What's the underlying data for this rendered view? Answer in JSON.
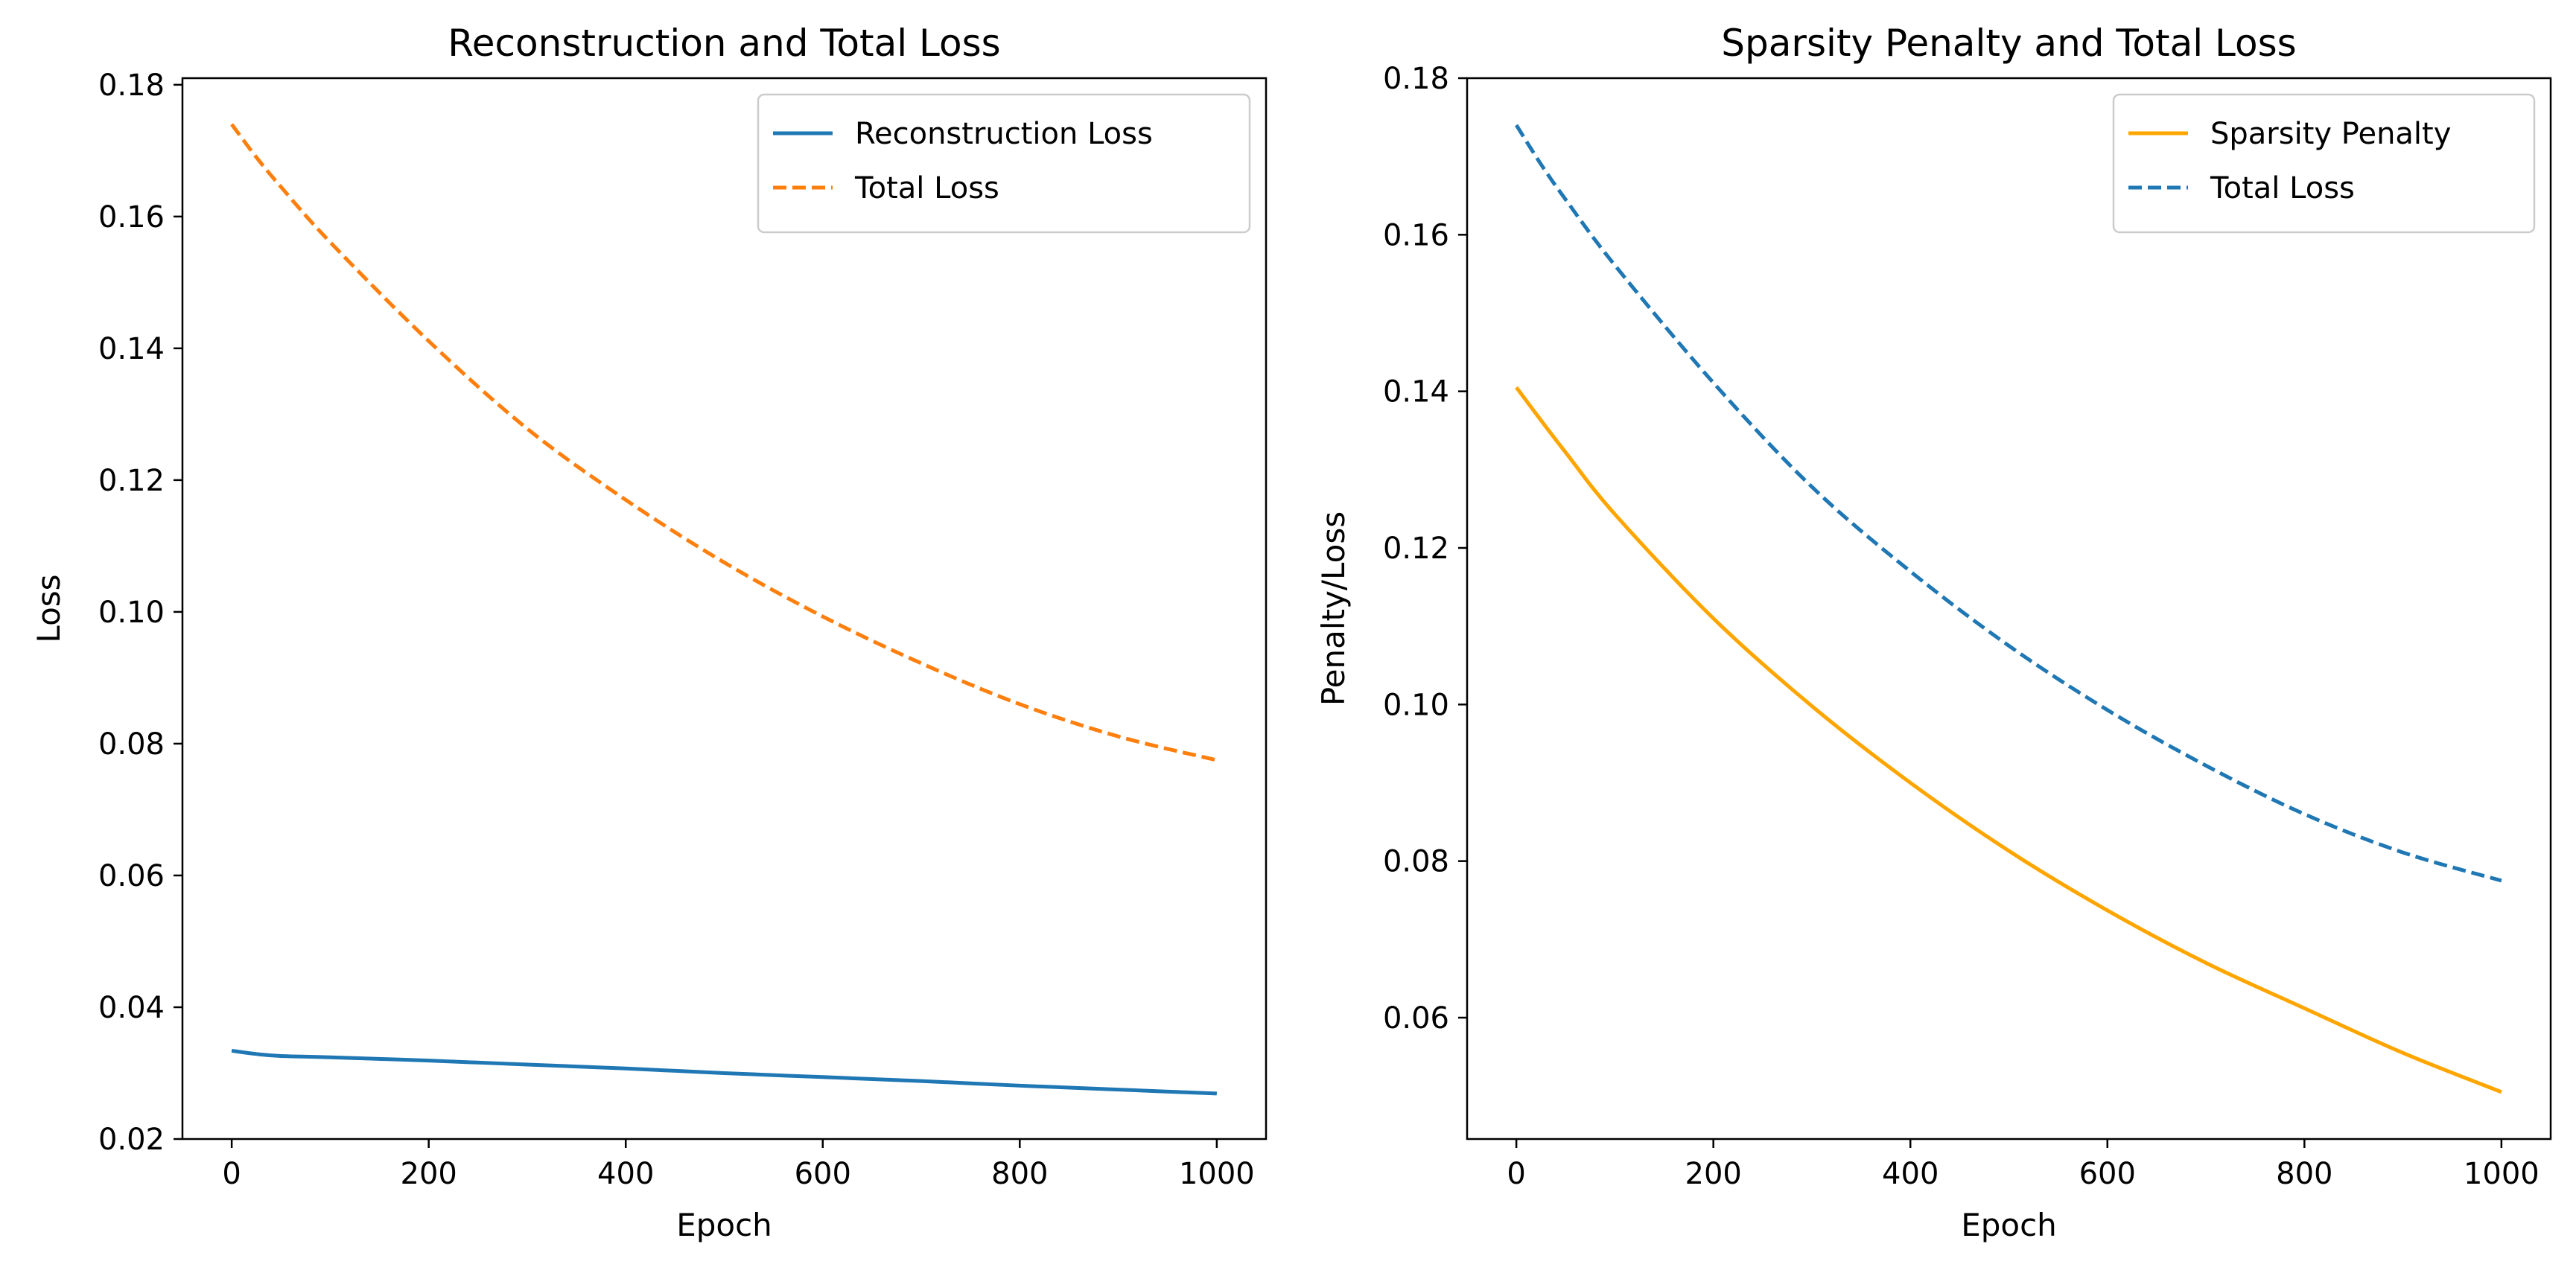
{
  "chart_data": [
    {
      "type": "line",
      "title": "Reconstruction and Total Loss",
      "xlabel": "Epoch",
      "ylabel": "Loss",
      "xlim": [
        -50,
        1050
      ],
      "ylim": [
        0.02,
        0.181
      ],
      "x_ticks": [
        0,
        200,
        400,
        600,
        800,
        1000
      ],
      "x_tick_labels": [
        "0",
        "200",
        "400",
        "600",
        "800",
        "1000"
      ],
      "y_ticks": [
        0.02,
        0.04,
        0.06,
        0.08,
        0.1,
        0.12,
        0.14,
        0.16,
        0.18
      ],
      "y_tick_labels": [
        "0.02",
        "0.04",
        "0.06",
        "0.08",
        "0.10",
        "0.12",
        "0.14",
        "0.16",
        "0.18"
      ],
      "grid": false,
      "legend_position": "top-right",
      "x": [
        0,
        25,
        50,
        100,
        200,
        300,
        400,
        500,
        600,
        700,
        800,
        900,
        1000
      ],
      "series": [
        {
          "name": "Reconstruction Loss",
          "color": "#1f77b4",
          "style": "solid",
          "values": [
            0.0334,
            0.0329,
            0.0326,
            0.0324,
            0.0319,
            0.0313,
            0.0307,
            0.03,
            0.0294,
            0.0288,
            0.0281,
            0.0275,
            0.0269
          ]
        },
        {
          "name": "Total Loss",
          "color": "#ff7f0e",
          "style": "dashed",
          "values": [
            0.174,
            0.169,
            0.1645,
            0.1561,
            0.1411,
            0.1278,
            0.117,
            0.1075,
            0.0993,
            0.0922,
            0.086,
            0.0811,
            0.0775
          ]
        }
      ]
    },
    {
      "type": "line",
      "title": "Sparsity Penalty and Total Loss",
      "xlabel": "Epoch",
      "ylabel": "Penalty/Loss",
      "xlim": [
        -50,
        1050
      ],
      "ylim": [
        0.0445,
        0.18
      ],
      "x_ticks": [
        0,
        200,
        400,
        600,
        800,
        1000
      ],
      "x_tick_labels": [
        "0",
        "200",
        "400",
        "600",
        "800",
        "1000"
      ],
      "y_ticks": [
        0.06,
        0.08,
        0.1,
        0.12,
        0.14,
        0.16,
        0.18
      ],
      "y_tick_labels": [
        "0.06",
        "0.08",
        "0.10",
        "0.12",
        "0.14",
        "0.16",
        "0.18"
      ],
      "grid": false,
      "legend_position": "top-right",
      "x": [
        0,
        25,
        50,
        100,
        200,
        300,
        400,
        500,
        600,
        700,
        800,
        900,
        1000
      ],
      "series": [
        {
          "name": "Sparsity Penalty",
          "color": "#ffa500",
          "style": "solid",
          "values": [
            0.1405,
            0.1363,
            0.1322,
            0.1243,
            0.111,
            0.0998,
            0.09,
            0.0813,
            0.0737,
            0.067,
            0.0612,
            0.0555,
            0.0505
          ]
        },
        {
          "name": "Total Loss",
          "color": "#1f77b4",
          "style": "dashed",
          "values": [
            0.174,
            0.169,
            0.1645,
            0.1561,
            0.1411,
            0.1278,
            0.117,
            0.1075,
            0.0993,
            0.0922,
            0.086,
            0.0811,
            0.0775
          ]
        }
      ]
    }
  ]
}
